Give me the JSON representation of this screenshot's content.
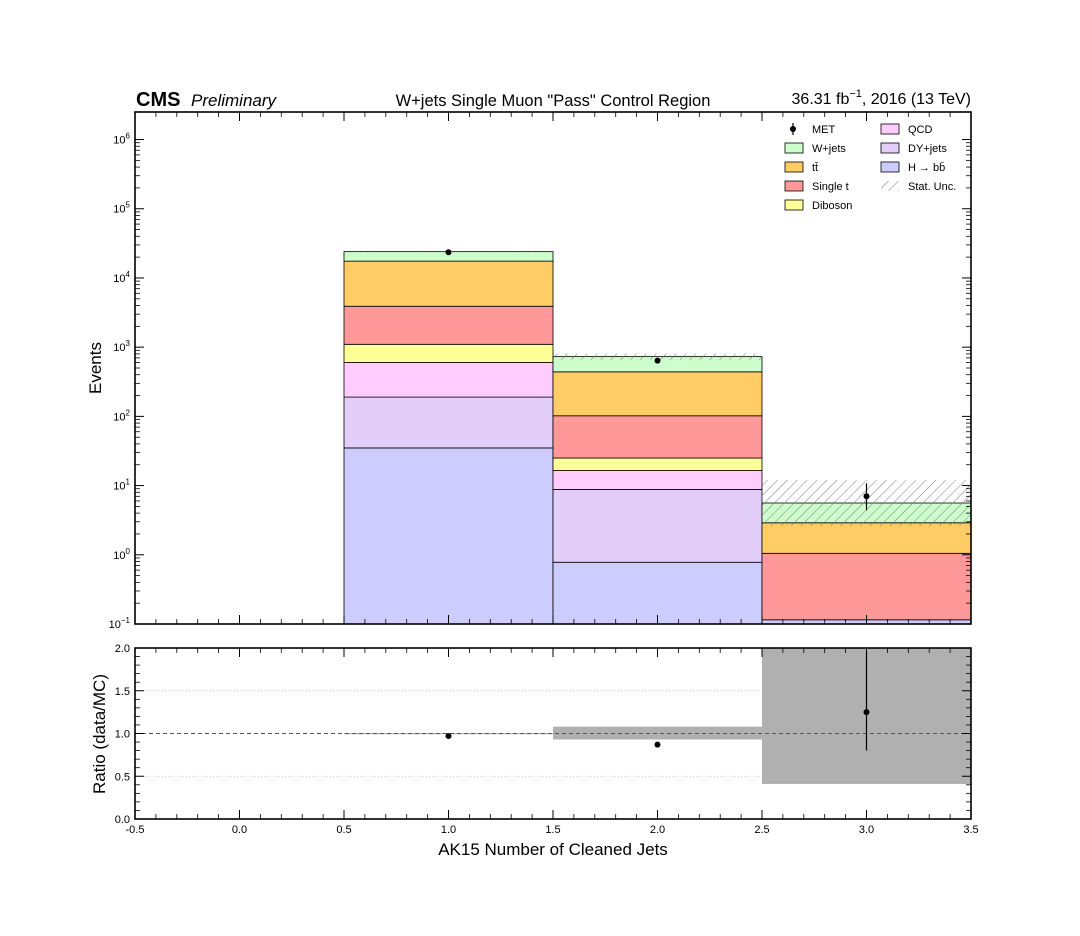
{
  "header": {
    "experiment": "CMS",
    "status": "Preliminary",
    "title": "W+jets Single Muon \"Pass\" Control Region",
    "lumi": "36.31 fb",
    "lumi_exp": "−1",
    "lumi_suffix": ", 2016 (13 TeV)"
  },
  "chart_data": [
    {
      "type": "bar",
      "stacked": true,
      "yscale": "log",
      "ylabel": "Events",
      "xlim": [
        -0.5,
        3.5
      ],
      "ylim": [
        0.1,
        2500000
      ],
      "y_tick_exponents": [
        -1,
        0,
        1,
        2,
        3,
        4,
        5,
        6
      ],
      "bins": [
        [
          0.5,
          1.5
        ],
        [
          1.5,
          2.5
        ],
        [
          2.5,
          3.5
        ]
      ],
      "stack_order": [
        "H → bb̄",
        "DY+jets",
        "QCD",
        "Diboson",
        "Single t",
        "tt̄",
        "W+jets"
      ],
      "series": [
        {
          "name": "H → bb̄",
          "color": "#ccccff",
          "cumulative_tops": [
            35,
            0.78,
            0.115
          ]
        },
        {
          "name": "DY+jets",
          "color": "#e3cdf9",
          "cumulative_tops": [
            190,
            8.8,
            0.115
          ]
        },
        {
          "name": "QCD",
          "color": "#ffccff",
          "cumulative_tops": [
            600,
            16.5,
            0.115
          ]
        },
        {
          "name": "Diboson",
          "color": "#ffff99",
          "cumulative_tops": [
            1100,
            25,
            0.115
          ]
        },
        {
          "name": "Single t",
          "color": "#ff9999",
          "cumulative_tops": [
            3900,
            102,
            1.05
          ]
        },
        {
          "name": "tt̄",
          "color": "#ffcc66",
          "cumulative_tops": [
            17500,
            440,
            2.9
          ]
        },
        {
          "name": "W+jets",
          "color": "#ccffcc",
          "cumulative_tops": [
            24000,
            730,
            5.6
          ]
        }
      ],
      "stat_unc": {
        "name": "Stat. Unc.",
        "bands": [
          [
            23800,
            24200
          ],
          [
            655,
            810
          ],
          [
            2.6,
            12
          ]
        ]
      },
      "data": {
        "name": "MET",
        "x": [
          1.0,
          2.0,
          3.0
        ],
        "y": [
          23500,
          640,
          7.0
        ],
        "yerr_low": [
          150,
          25,
          2.6
        ],
        "yerr_high": [
          150,
          25,
          3.8
        ]
      },
      "legend": {
        "placement": "top-right",
        "columns": [
          [
            {
              "label": "MET",
              "kind": "data"
            },
            {
              "label": "W+jets",
              "color": "#ccffcc"
            },
            {
              "label": "tt̄",
              "color": "#ffcc66"
            },
            {
              "label": "Single t",
              "color": "#ff9999"
            },
            {
              "label": "Diboson",
              "color": "#ffff99"
            }
          ],
          [
            {
              "label": "QCD",
              "color": "#ffccff"
            },
            {
              "label": "DY+jets",
              "color": "#e3cdf9"
            },
            {
              "label": "H → bb̄",
              "color": "#ccccff"
            },
            {
              "label": "Stat. Unc.",
              "kind": "hatch"
            }
          ]
        ]
      }
    },
    {
      "type": "scatter",
      "xlabel": "AK15 Number of Cleaned Jets",
      "ylabel": "Ratio (data/MC)",
      "xlim": [
        -0.5,
        3.5
      ],
      "ylim": [
        0.0,
        2.0
      ],
      "x_ticks": [
        "-0.5",
        "0.0",
        "0.5",
        "1.0",
        "1.5",
        "2.0",
        "2.5",
        "3.0",
        "3.5"
      ],
      "y_ticks": [
        "0.0",
        "0.5",
        "1.0",
        "1.5",
        "2.0"
      ],
      "grid": true,
      "reference_line": 1.0,
      "x": [
        1.0,
        2.0,
        3.0
      ],
      "y": [
        0.97,
        0.87,
        1.25
      ],
      "yerr_low": [
        0.01,
        0.03,
        0.45
      ],
      "yerr_high": [
        0.01,
        0.03,
        0.7
      ],
      "unc_band_color": "#b0b0b0",
      "unc_bands": [
        [
          0.995,
          1.005
        ],
        [
          0.93,
          1.08
        ],
        [
          0.41,
          2.0
        ]
      ]
    }
  ]
}
